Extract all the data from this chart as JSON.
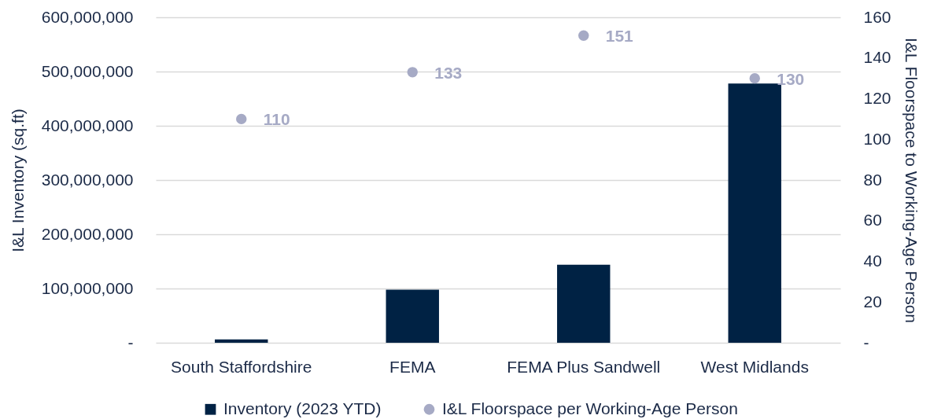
{
  "chart_data": {
    "type": "bar",
    "categories": [
      "South Staffordshire",
      "FEMA",
      "FEMA Plus Sandwell",
      "West Midlands"
    ],
    "series": [
      {
        "name": "Inventory (2023 YTD)",
        "color": "#002244",
        "values": [
          6000000,
          98000000,
          144000000,
          478000000
        ]
      },
      {
        "name": "I&L Floorspace per Working-Age Person",
        "type": "scatter",
        "axis": "y2",
        "color": "#a6aac5",
        "values": [
          110,
          133,
          151,
          130
        ],
        "value_labels": [
          "110",
          "133",
          "151",
          "130"
        ]
      }
    ],
    "ylabel": "I&L Inventory (sq.ft)",
    "y2label": "I&L Floorspace to Working-Age Person",
    "ylim": [
      0,
      600000000
    ],
    "yticks": [
      {
        "value": 0,
        "label": "-"
      },
      {
        "value": 100000000,
        "label": "100,000,000"
      },
      {
        "value": 200000000,
        "label": "200,000,000"
      },
      {
        "value": 300000000,
        "label": "300,000,000"
      },
      {
        "value": 400000000,
        "label": "400,000,000"
      },
      {
        "value": 500000000,
        "label": "500,000,000"
      },
      {
        "value": 600000000,
        "label": "600,000,000"
      }
    ],
    "y2lim": [
      0,
      160
    ],
    "y2ticks": [
      {
        "value": 0,
        "label": "-"
      },
      20,
      40,
      60,
      80,
      100,
      120,
      140,
      160
    ],
    "grid": "y",
    "legend": "bottom",
    "marker": "circle"
  }
}
